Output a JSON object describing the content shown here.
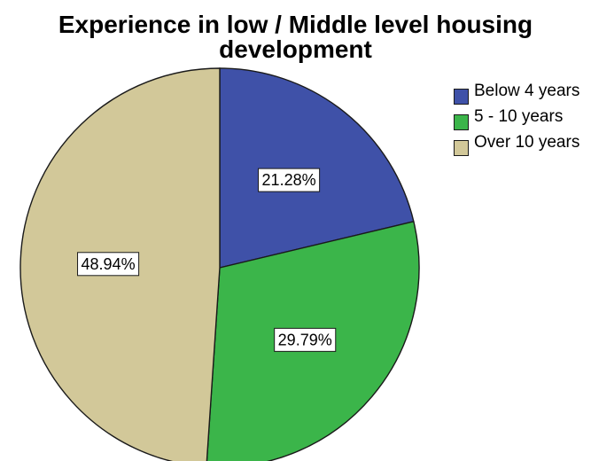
{
  "chart_data": {
    "type": "pie",
    "title": "Experience in low / Middle level housing development",
    "slices": [
      {
        "label": "Below 4 years",
        "value": 21.28,
        "display": "21.28%",
        "color": "#3f51a8"
      },
      {
        "label": "5 - 10 years",
        "value": 29.79,
        "display": "29.79%",
        "color": "#3bb54a"
      },
      {
        "label": "Over 10 years",
        "value": 48.94,
        "display": "48.94%",
        "color": "#d2c899"
      }
    ],
    "legend_position": "top-right",
    "start_angle": "12 o'clock",
    "direction": "clockwise"
  }
}
